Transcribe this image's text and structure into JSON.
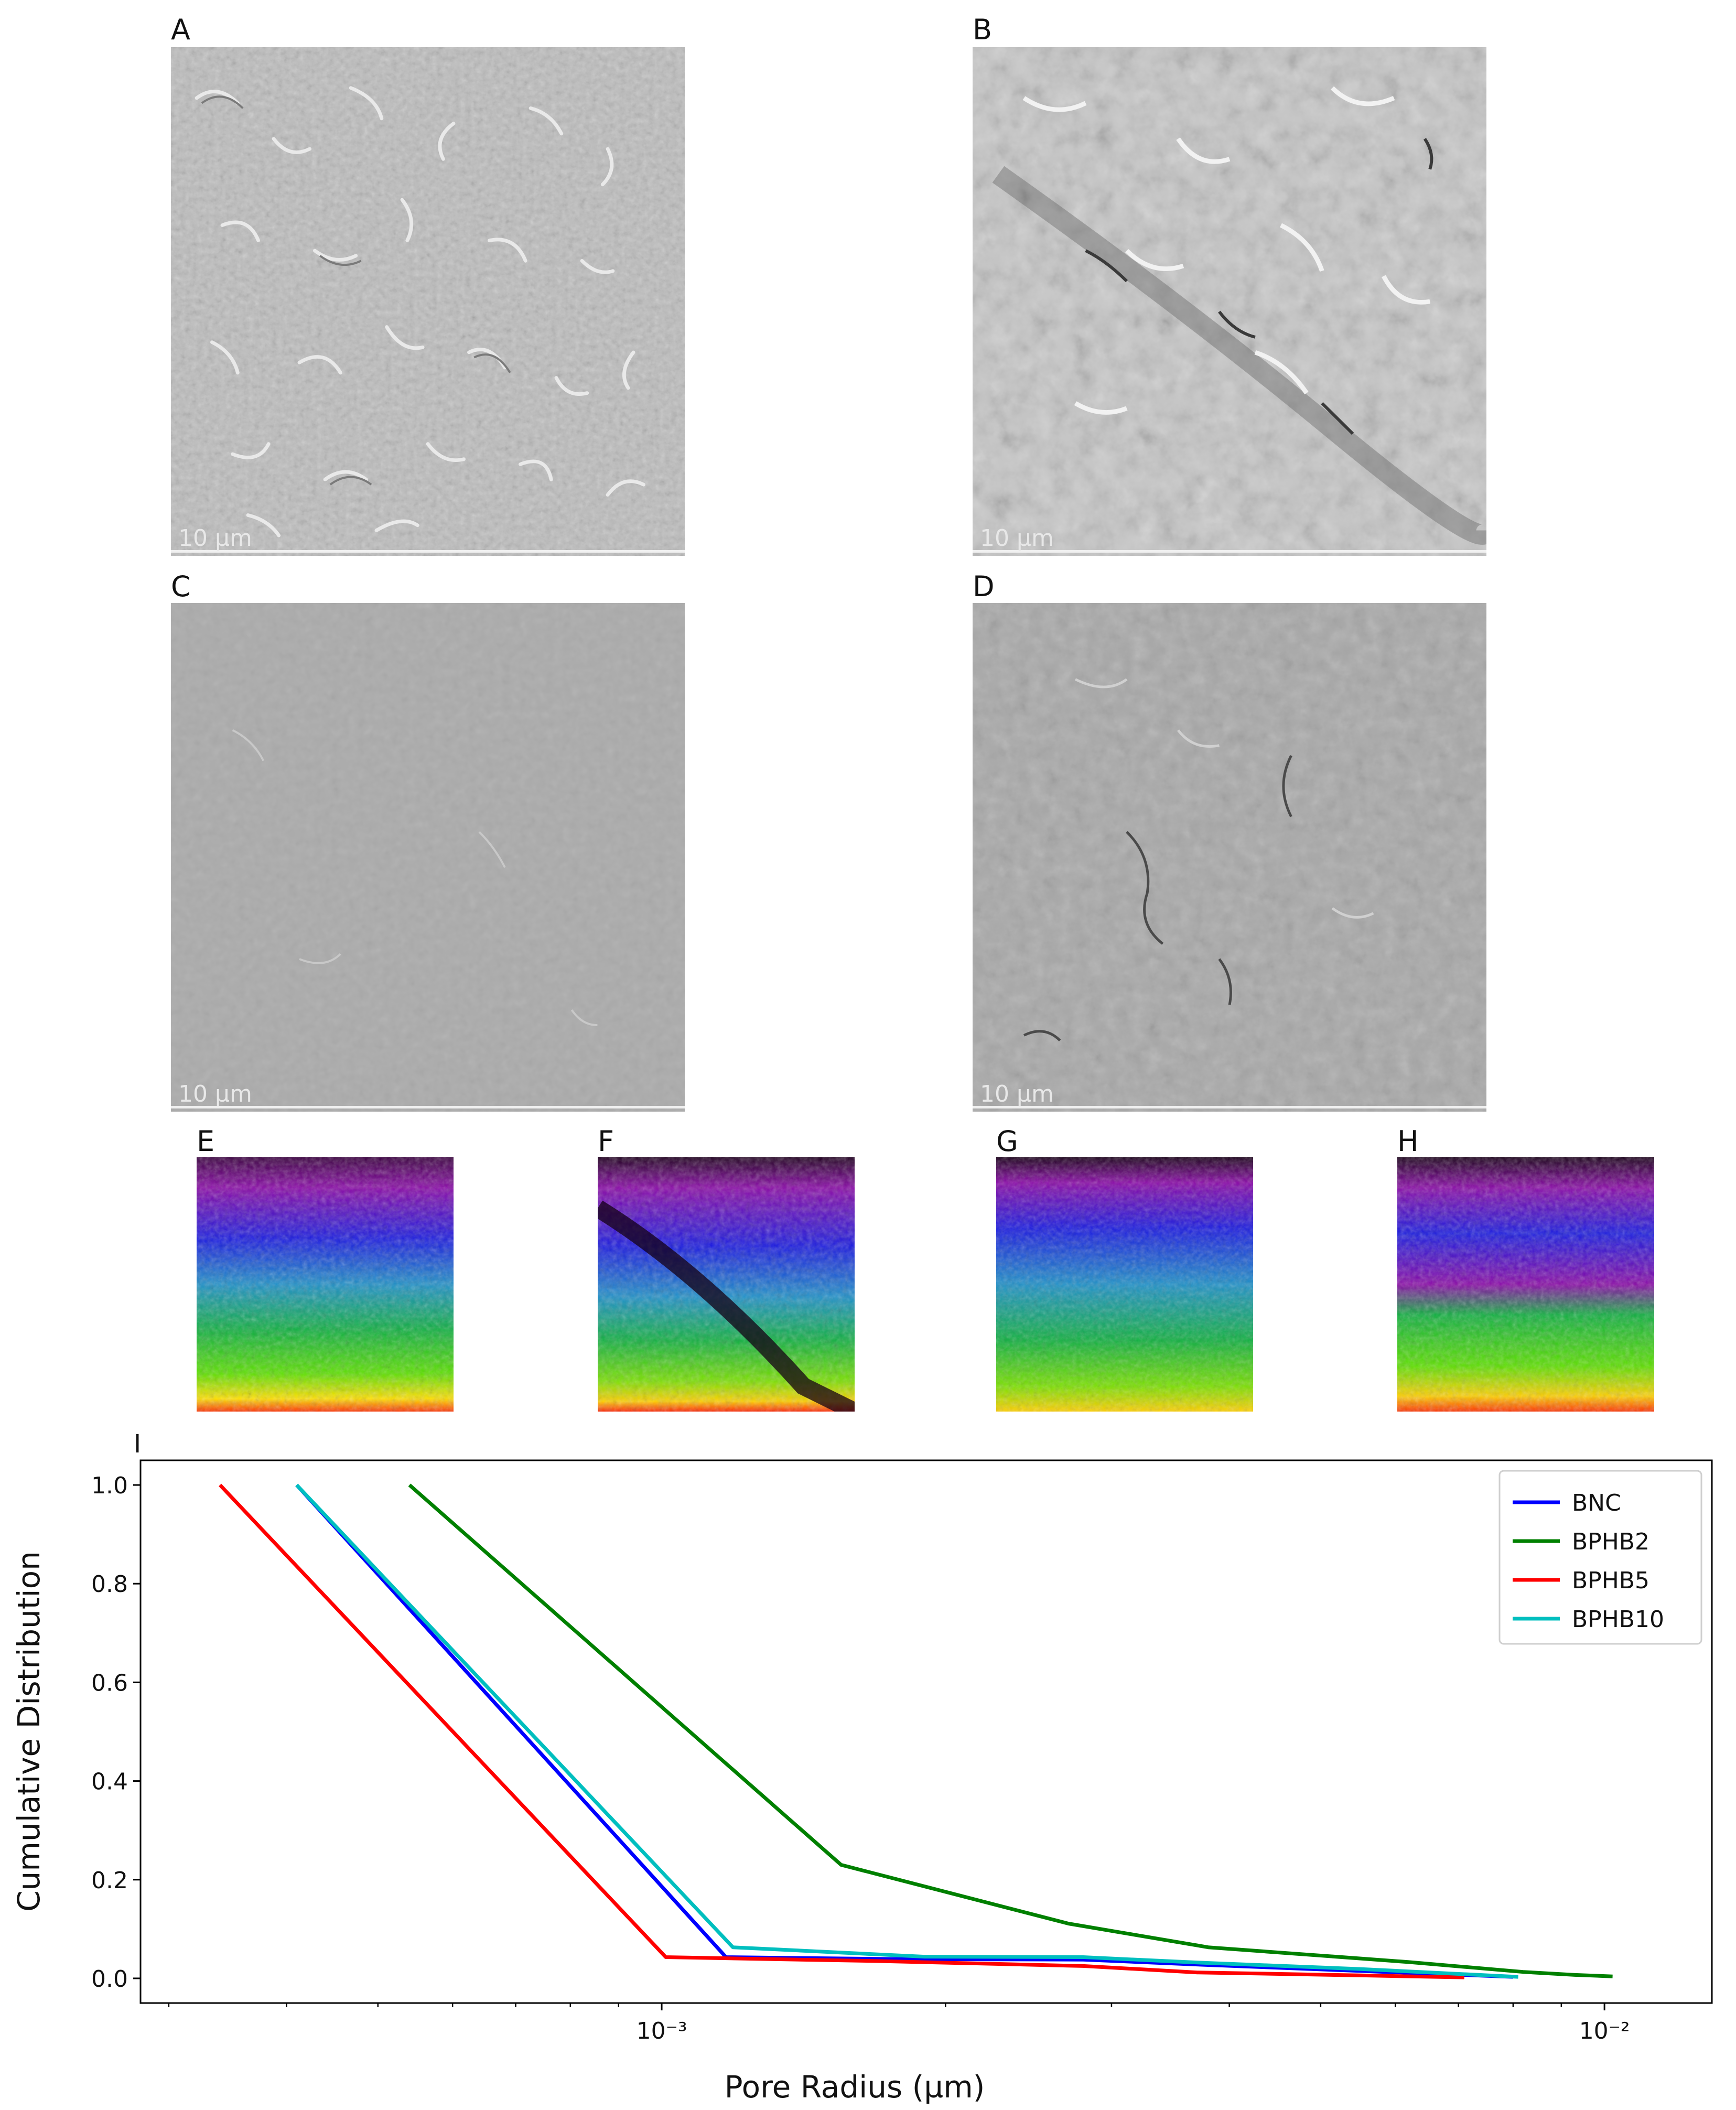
{
  "figure": {
    "sem_panels": [
      {
        "label": "A",
        "scale_text": "10 µm"
      },
      {
        "label": "B",
        "scale_text": "10 µm"
      },
      {
        "label": "C",
        "scale_text": "10 µm"
      },
      {
        "label": "D",
        "scale_text": "10 µm"
      }
    ],
    "map_panels": [
      {
        "label": "E"
      },
      {
        "label": "F"
      },
      {
        "label": "G"
      },
      {
        "label": "H"
      }
    ],
    "chart_panel_label": "I"
  },
  "chart_data": {
    "type": "line",
    "title": "",
    "xlabel": "Pore Radius (µm)",
    "ylabel": "Cumulative Distribution",
    "xscale": "log",
    "xlim": [
      0.00028,
      0.013
    ],
    "ylim": [
      -0.05,
      1.05
    ],
    "yticks": [
      0.0,
      0.2,
      0.4,
      0.6,
      0.8,
      1.0
    ],
    "ytick_labels": [
      "0.0",
      "0.2",
      "0.4",
      "0.6",
      "0.8",
      "1.0"
    ],
    "xticks_major": [
      0.001,
      0.01
    ],
    "xtick_labels": [
      "10⁻³",
      "10⁻²"
    ],
    "grid": false,
    "legend_position": "upper right",
    "series": [
      {
        "name": "BNC",
        "color": "#0000ff",
        "x": [
          0.00041,
          0.00117,
          0.0018,
          0.0028,
          0.0037,
          0.0055,
          0.008
        ],
        "y": [
          1.0,
          0.043,
          0.039,
          0.038,
          0.028,
          0.015,
          0.003
        ]
      },
      {
        "name": "BPHB2",
        "color": "#008000",
        "x": [
          0.00054,
          0.00155,
          0.0027,
          0.0038,
          0.0062,
          0.0082,
          0.0093,
          0.0102
        ],
        "y": [
          1.0,
          0.23,
          0.111,
          0.063,
          0.033,
          0.013,
          0.007,
          0.004
        ]
      },
      {
        "name": "BPHB5",
        "color": "#ff0000",
        "x": [
          0.00034,
          0.00101,
          0.0017,
          0.0028,
          0.0037,
          0.0055,
          0.0071
        ],
        "y": [
          1.0,
          0.043,
          0.035,
          0.025,
          0.012,
          0.006,
          0.002
        ]
      },
      {
        "name": "BPHB10",
        "color": "#00bfbf",
        "x": [
          0.00041,
          0.00119,
          0.0019,
          0.0028,
          0.0037,
          0.0055,
          0.0081
        ],
        "y": [
          1.0,
          0.063,
          0.044,
          0.043,
          0.032,
          0.019,
          0.003
        ]
      }
    ]
  }
}
